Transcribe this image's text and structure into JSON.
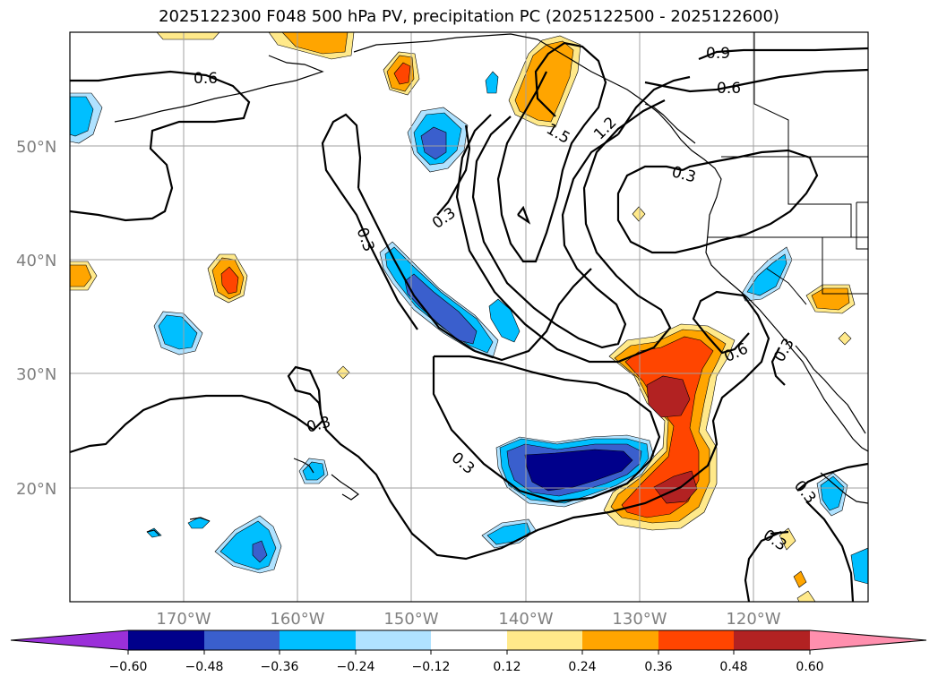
{
  "title": "2025122300 F048 500 hPa PV, precipitation PC (2025122500 - 2025122600)",
  "latitude_labels": [
    "50°N",
    "40°N",
    "30°N",
    "20°N"
  ],
  "longitude_labels": [
    "170°W",
    "160°W",
    "150°W",
    "140°W",
    "130°W",
    "120°W"
  ],
  "contour_labels": [
    "0.6",
    "0.9",
    "0.6",
    "1.5",
    "1.2",
    "0.3",
    "0.3",
    "0.3",
    "0.3",
    "0.3",
    "0.6",
    "0.3",
    "0.3",
    "0.3"
  ],
  "colorbar": {
    "ticks": [
      "−0.60",
      "−0.48",
      "−0.36",
      "−0.24",
      "−0.12",
      "0.12",
      "0.24",
      "0.36",
      "0.48",
      "0.60"
    ],
    "colors": [
      "#9b30d9",
      "#00008b",
      "#3a5fcd",
      "#00bfff",
      "#b0e2ff",
      "#ffffff",
      "#ffe98a",
      "#ffa500",
      "#ff4500",
      "#b22222",
      "#ff8fae"
    ]
  }
}
